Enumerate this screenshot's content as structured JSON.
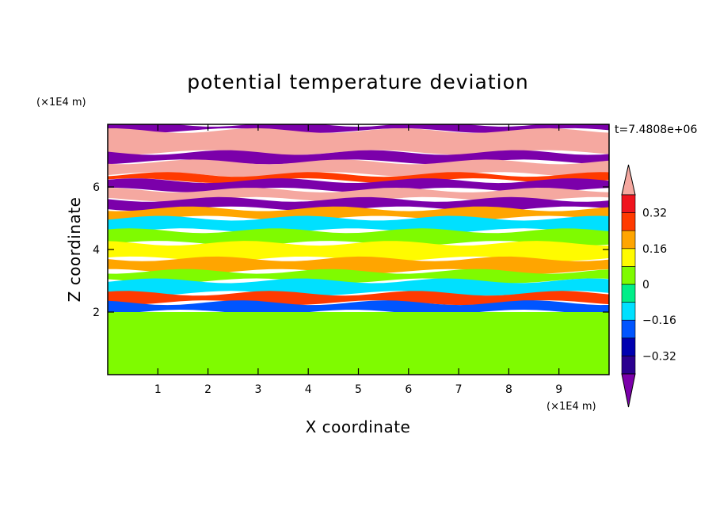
{
  "chart_data": {
    "type": "heatmap",
    "title": "potential temperature deviation",
    "xlabel": "X coordinate",
    "ylabel": "Z coordinate",
    "x_unit": "(×1E4 m)",
    "y_unit": "(×1E4 m)",
    "time_label": "t=7.4808e+06",
    "xlim": [
      0,
      10
    ],
    "ylim": [
      0,
      8
    ],
    "x_ticks": [
      1,
      2,
      3,
      4,
      5,
      6,
      7,
      8,
      9
    ],
    "y_ticks": [
      2,
      4,
      6
    ],
    "colorbar": {
      "levels": [
        -0.4,
        -0.32,
        -0.24,
        -0.16,
        -0.08,
        0,
        0.08,
        0.16,
        0.24,
        0.32,
        0.4
      ],
      "tick_labels": [
        "0.32",
        "0.16",
        "0",
        "−0.16",
        "−0.32"
      ],
      "tick_values": [
        0.32,
        0.16,
        0,
        -0.16,
        -0.32
      ],
      "colors": {
        "under": "#7b00aa",
        "bins": [
          "#2b008f",
          "#0000b0",
          "#0055ff",
          "#00e0ff",
          "#00ee88",
          "#7ffb00",
          "#fffb00",
          "#ffa500",
          "#ff3a00",
          "#f0141e"
        ],
        "over": "#f5a8a0"
      }
    },
    "field_bands": [
      {
        "z": [
          7.8,
          8.0
        ],
        "value": -0.5
      },
      {
        "z": [
          7.1,
          7.8
        ],
        "value": 0.5
      },
      {
        "z": [
          6.8,
          7.1
        ],
        "value": -0.5
      },
      {
        "z": [
          6.4,
          6.8
        ],
        "value": 0.5
      },
      {
        "z": [
          6.2,
          6.4
        ],
        "value": 0.3
      },
      {
        "z": [
          5.9,
          6.2
        ],
        "value": -0.5
      },
      {
        "z": [
          5.6,
          5.9
        ],
        "value": 0.5
      },
      {
        "z": [
          5.3,
          5.6
        ],
        "value": -0.5
      },
      {
        "z": [
          5.0,
          5.3
        ],
        "value": 0.2
      },
      {
        "z": [
          4.6,
          5.0
        ],
        "value": -0.1
      },
      {
        "z": [
          4.2,
          4.6
        ],
        "value": 0.05
      },
      {
        "z": [
          3.7,
          4.2
        ],
        "value": 0.1
      },
      {
        "z": [
          3.3,
          3.7
        ],
        "value": 0.2
      },
      {
        "z": [
          3.0,
          3.3
        ],
        "value": 0.05
      },
      {
        "z": [
          2.6,
          3.0
        ],
        "value": -0.1
      },
      {
        "z": [
          2.3,
          2.6
        ],
        "value": 0.25
      },
      {
        "z": [
          2.0,
          2.3
        ],
        "value": -0.2
      },
      {
        "z": [
          0.0,
          2.0
        ],
        "value": 0.05
      }
    ]
  }
}
